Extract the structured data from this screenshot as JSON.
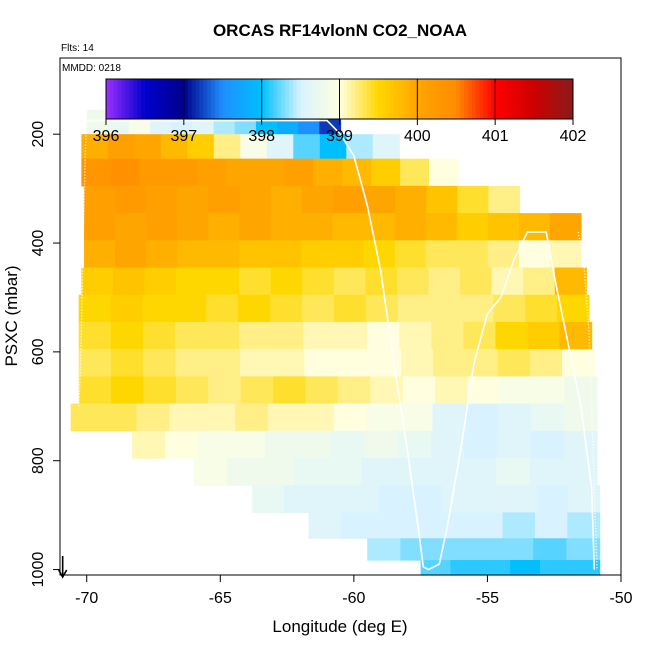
{
  "chart_data": {
    "type": "heatmap",
    "title": "ORCAS RF14vlonN CO2_NOAA",
    "annotations": [
      "Flts: 14",
      "MMDD: 0218"
    ],
    "xlabel": "Longitude (deg E)",
    "ylabel": "PSXC (mbar)",
    "xlim": [
      -71,
      -50
    ],
    "ylim": [
      1010,
      60
    ],
    "x_ticks": [
      -70,
      -65,
      -60,
      -55,
      -50
    ],
    "y_ticks": [
      200,
      400,
      600,
      800,
      1000
    ],
    "colorbar": {
      "range": [
        396,
        402
      ],
      "ticks": [
        396,
        397,
        398,
        399,
        400,
        401,
        402
      ],
      "colors": [
        "#9b30ff",
        "#0000cd",
        "#00008b",
        "#1e90ff",
        "#00bfff",
        "#d8f3ff",
        "#ffffe0",
        "#ffd700",
        "#ffa500",
        "#ff8c00",
        "#ff0000",
        "#cd0000",
        "#8b1a1a"
      ]
    },
    "rows": [
      {
        "p": 180,
        "x0": -70.0,
        "x1": -60.5,
        "values": [
          398.8,
          398.7,
          398.9,
          398.6,
          398.5,
          398.6,
          398.4,
          398.3,
          398.0,
          397.8,
          397.5,
          397.2
        ]
      },
      {
        "p": 220,
        "x0": -70.2,
        "x1": -58.3,
        "values": [
          399.9,
          400.1,
          400.0,
          399.8,
          399.6,
          399.2,
          398.9,
          398.6,
          398.2,
          398.0,
          398.4,
          398.6
        ]
      },
      {
        "p": 270,
        "x0": -70.2,
        "x1": -56.1,
        "values": [
          400.3,
          400.4,
          400.2,
          400.2,
          400.1,
          400.0,
          400.0,
          400.1,
          399.9,
          399.8,
          399.6,
          399.3,
          399.0
        ]
      },
      {
        "p": 320,
        "x0": -70.1,
        "x1": -53.8,
        "values": [
          400.1,
          400.2,
          400.1,
          400.0,
          400.1,
          400.0,
          399.9,
          400.0,
          400.1,
          400.0,
          399.9,
          399.7,
          399.4,
          399.2
        ]
      },
      {
        "p": 370,
        "x0": -70.1,
        "x1": -51.5,
        "values": [
          400.1,
          400.0,
          400.1,
          400.0,
          399.9,
          400.0,
          399.9,
          399.9,
          399.8,
          399.8,
          399.9,
          399.8,
          399.6,
          399.7,
          399.8,
          400.0
        ]
      },
      {
        "p": 420,
        "x0": -70.1,
        "x1": -51.5,
        "values": [
          399.9,
          400.0,
          399.9,
          399.8,
          399.8,
          399.7,
          399.7,
          399.6,
          399.6,
          399.5,
          399.4,
          399.3,
          399.3,
          399.2,
          399.0,
          399.1
        ]
      },
      {
        "p": 470,
        "x0": -70.2,
        "x1": -51.3,
        "values": [
          399.6,
          399.7,
          399.6,
          399.5,
          399.5,
          399.4,
          399.5,
          399.4,
          399.3,
          399.4,
          399.3,
          399.2,
          399.3,
          399.1,
          399.2,
          399.8
        ]
      },
      {
        "p": 520,
        "x0": -70.3,
        "x1": -51.2,
        "values": [
          399.5,
          399.6,
          399.5,
          399.5,
          399.4,
          399.5,
          399.4,
          399.3,
          399.4,
          399.3,
          399.2,
          399.2,
          399.2,
          399.3,
          399.4,
          399.5
        ]
      },
      {
        "p": 570,
        "x0": -70.3,
        "x1": -51.1,
        "values": [
          399.4,
          399.5,
          399.4,
          399.3,
          399.3,
          399.2,
          399.2,
          399.1,
          399.1,
          399.0,
          399.1,
          399.2,
          399.3,
          399.5,
          399.6,
          399.8
        ]
      },
      {
        "p": 620,
        "x0": -70.3,
        "x1": -51.0,
        "values": [
          399.3,
          399.4,
          399.3,
          399.2,
          399.2,
          399.1,
          399.1,
          399.0,
          399.0,
          399.0,
          399.1,
          399.2,
          399.2,
          399.3,
          399.2,
          399.0
        ]
      },
      {
        "p": 670,
        "x0": -70.3,
        "x1": -50.9,
        "values": [
          399.4,
          399.5,
          399.4,
          399.3,
          399.2,
          399.3,
          399.4,
          399.3,
          399.2,
          399.1,
          399.0,
          399.1,
          399.0,
          398.9,
          398.9,
          398.8
        ]
      },
      {
        "p": 720,
        "x0": -70.6,
        "x1": -50.9,
        "values": [
          399.3,
          399.3,
          399.2,
          399.1,
          399.1,
          399.2,
          399.1,
          399.1,
          399.0,
          398.9,
          398.9,
          398.6,
          398.5,
          398.6,
          398.7,
          398.8
        ]
      },
      {
        "p": 770,
        "x0": -68.3,
        "x1": -50.9,
        "values": [
          399.1,
          399.0,
          398.9,
          398.9,
          398.8,
          398.8,
          398.7,
          398.8,
          398.7,
          398.6,
          398.5,
          398.6,
          398.5,
          398.6
        ]
      },
      {
        "p": 820,
        "x0": -66.0,
        "x1": -50.9,
        "values": [
          398.9,
          398.8,
          398.8,
          398.7,
          398.7,
          398.6,
          398.6,
          398.6,
          398.6,
          398.7,
          398.6,
          398.6
        ]
      },
      {
        "p": 870,
        "x0": -63.8,
        "x1": -50.8,
        "values": [
          398.7,
          398.6,
          398.6,
          398.6,
          398.5,
          398.5,
          398.6,
          398.6,
          398.6,
          398.5,
          398.6
        ]
      },
      {
        "p": 920,
        "x0": -61.7,
        "x1": -50.8,
        "values": [
          398.6,
          398.5,
          398.5,
          398.5,
          398.5,
          398.5,
          398.4,
          398.5,
          398.4
        ]
      },
      {
        "p": 965,
        "x0": -59.5,
        "x1": -50.8,
        "values": [
          398.4,
          398.3,
          398.3,
          398.3,
          398.3,
          398.2,
          398.3
        ]
      },
      {
        "p": 1000,
        "x0": -57.5,
        "x1": -50.8,
        "values": [
          398.2,
          398.1,
          398.1,
          398.0,
          398.1,
          398.1
        ]
      }
    ],
    "track": [
      [
        -70.0,
        175
      ],
      [
        -69.5,
        175
      ],
      [
        -65,
        175
      ],
      [
        -61,
        175
      ],
      [
        -60.5,
        200
      ],
      [
        -60,
        240
      ],
      [
        -59.5,
        330
      ],
      [
        -59,
        450
      ],
      [
        -58.5,
        620
      ],
      [
        -58,
        780
      ],
      [
        -57.6,
        920
      ],
      [
        -57.4,
        995
      ],
      [
        -57.2,
        1000
      ],
      [
        -56.8,
        990
      ],
      [
        -56.5,
        920
      ],
      [
        -56,
        780
      ],
      [
        -55.5,
        620
      ],
      [
        -55,
        530
      ],
      [
        -54.5,
        500
      ],
      [
        -54,
        430
      ],
      [
        -53.5,
        380
      ],
      [
        -53,
        380
      ],
      [
        -52.8,
        380
      ],
      [
        -52.5,
        460
      ],
      [
        -52,
        580
      ],
      [
        -51.5,
        700
      ],
      [
        -51.1,
        850
      ],
      [
        -51.0,
        1000
      ]
    ],
    "track_dotted": [
      [
        -70.0,
        175
      ],
      [
        -70.05,
        230
      ],
      [
        -70.1,
        330
      ],
      [
        -70.15,
        440
      ],
      [
        -70.2,
        560
      ],
      [
        -70.25,
        650
      ],
      [
        -70.3,
        700
      ]
    ],
    "track2": [
      [
        -51.6,
        380
      ],
      [
        -51.4,
        430
      ],
      [
        -51.2,
        560
      ],
      [
        -51.1,
        700
      ],
      [
        -51.0,
        850
      ],
      [
        -50.9,
        1000
      ]
    ],
    "arrow_x": -70.9
  }
}
